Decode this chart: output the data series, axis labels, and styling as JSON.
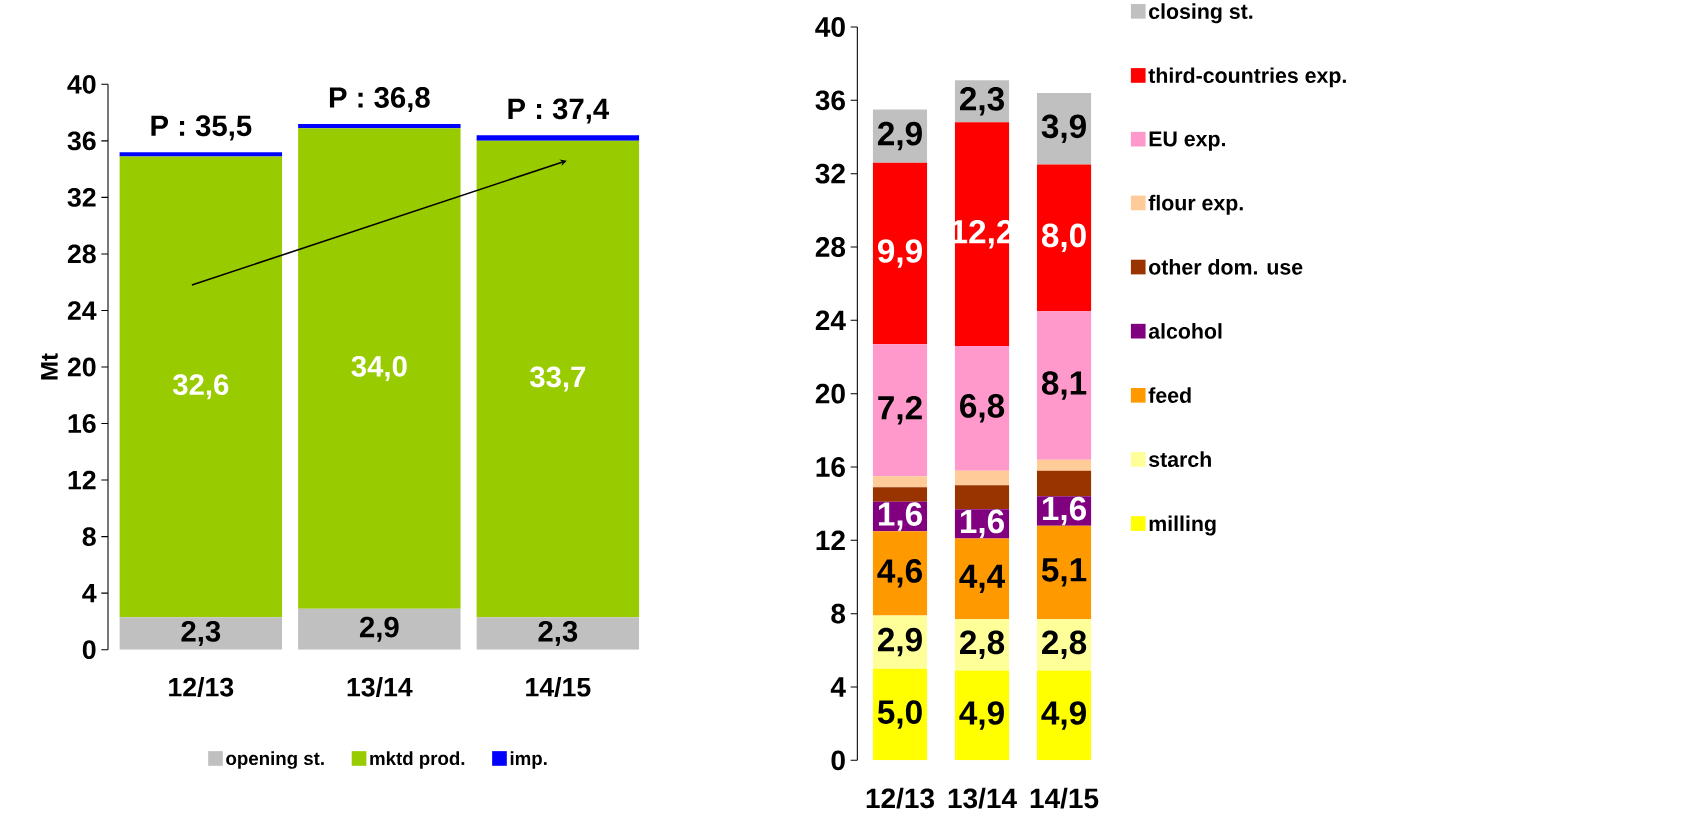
{
  "chart_data": [
    {
      "type": "bar",
      "stacked": true,
      "categories": [
        "12/13",
        "13/14",
        "14/15"
      ],
      "ylabel": "Mt",
      "ylim": [
        0,
        40
      ],
      "yticks": [
        0,
        4,
        8,
        12,
        16,
        20,
        24,
        28,
        32,
        36,
        40
      ],
      "legend": "bottom",
      "series": [
        {
          "name": "opening st.",
          "color": "#c0c0c0",
          "values": [
            2.3,
            2.9,
            2.3
          ],
          "value_labels": [
            "2,3",
            "2,9",
            "2,3"
          ]
        },
        {
          "name": "mktd prod.",
          "color": "#99cc00",
          "values": [
            32.6,
            34.0,
            33.7
          ],
          "value_labels": [
            "32,6",
            "34,0",
            "33,7"
          ]
        },
        {
          "name": "imp.",
          "color": "#0000ff",
          "values": [
            0.3,
            0.3,
            0.4
          ]
        }
      ],
      "annotations": [
        "P : 35,5",
        "P : 36,8",
        "P : 37,4"
      ]
    },
    {
      "type": "bar",
      "stacked": true,
      "categories": [
        "12/13",
        "13/14",
        "14/15"
      ],
      "ylim": [
        0,
        40
      ],
      "yticks": [
        0,
        4,
        8,
        12,
        16,
        20,
        24,
        28,
        32,
        36,
        40
      ],
      "legend": "right",
      "series": [
        {
          "name": "milling",
          "color": "#ffff00",
          "values": [
            5.0,
            4.9,
            4.9
          ],
          "value_labels": [
            "5,0",
            "4,9",
            "4,9"
          ]
        },
        {
          "name": "starch",
          "color": "#ffff99",
          "values": [
            2.9,
            2.8,
            2.8
          ],
          "value_labels": [
            "2,9",
            "2,8",
            "2,8"
          ]
        },
        {
          "name": "feed",
          "color": "#ff9900",
          "values": [
            4.6,
            4.4,
            5.1
          ],
          "value_labels": [
            "4,6",
            "4,4",
            "5,1"
          ]
        },
        {
          "name": "alcohol",
          "color": "#800080",
          "values": [
            1.6,
            1.6,
            1.6
          ],
          "value_labels": [
            "1,6",
            "1,6",
            "1,6"
          ]
        },
        {
          "name": "other dom. use",
          "color": "#993300",
          "values": [
            0.8,
            1.3,
            1.4
          ]
        },
        {
          "name": "flour exp.",
          "color": "#ffcc99",
          "values": [
            0.6,
            0.8,
            0.6
          ]
        },
        {
          "name": "EU exp.",
          "color": "#ff99cc",
          "values": [
            7.2,
            6.8,
            8.1
          ],
          "value_labels": [
            "7,2",
            "6,8",
            "8,1"
          ]
        },
        {
          "name": "third-countries exp.",
          "color": "#ff0000",
          "values": [
            9.9,
            12.2,
            8.0
          ],
          "value_labels": [
            "9,9",
            "12,2",
            "8,0"
          ]
        },
        {
          "name": "closing st.",
          "color": "#c0c0c0",
          "values": [
            2.9,
            2.3,
            3.9
          ],
          "value_labels": [
            "2,9",
            "2,3",
            "3,9"
          ]
        }
      ]
    }
  ]
}
